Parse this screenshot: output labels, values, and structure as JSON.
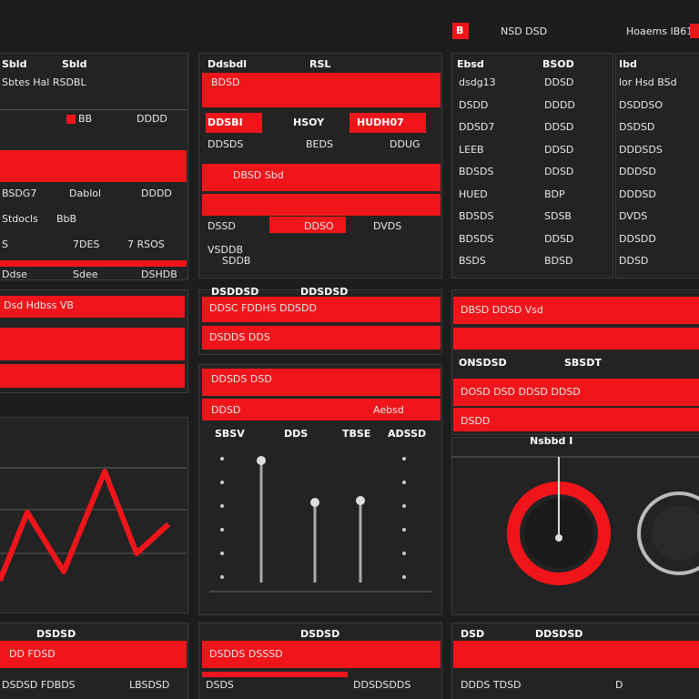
{
  "header": {
    "badge": "B",
    "label": "NSD DSD",
    "right": "Hoaems IB61"
  },
  "panel_a": {
    "cols": [
      "Sbld",
      "Sbld"
    ],
    "subtitle": "Sbtes Hal RSDBL",
    "rows": [
      [
        "BB",
        "DDDD"
      ],
      [
        "BSDG7",
        "Dablol",
        "DDDD"
      ],
      [
        "Stdocls",
        "BbB"
      ],
      [
        "S",
        "7DES",
        "7 RSOS"
      ],
      [
        "Ddse",
        "Sdee",
        "DSHDB"
      ]
    ]
  },
  "panel_b": {
    "cols": [
      "Ddsbdl",
      "RSL"
    ],
    "banner": "BDSD",
    "rows": [
      [
        "DDSBI",
        "HSOY",
        "HUDH07"
      ],
      [
        "DDSDS",
        "BEDS",
        "DDUG"
      ],
      [
        "DBSD Sbd"
      ],
      [
        "DSSD",
        "DDSO",
        "DVDS"
      ],
      [
        "VSDDB",
        "SDDB"
      ]
    ]
  },
  "panel_c": {
    "cols": [
      "Ebsd",
      "BSOD"
    ],
    "rows": [
      [
        "dsdg13",
        "DDSD"
      ],
      [
        "DSDD",
        "DDDD"
      ],
      [
        "DDSD7",
        "DDSD"
      ],
      [
        "LEEB",
        "DDSD"
      ],
      [
        "BDSDS",
        "DDSD"
      ],
      [
        "HUED",
        "BDP"
      ],
      [
        "BDSDS",
        "SDSB"
      ],
      [
        "BDSDS",
        "DDSD"
      ],
      [
        "BSDS",
        "BDSD"
      ]
    ]
  },
  "panel_d": {
    "cols": [
      "Ibd"
    ],
    "rows": [
      "lor Hsd BSd",
      "DSDDSO",
      "DSDSD",
      "DDDSDS",
      "DDDSD",
      "DDDSD",
      "DVDS",
      "DDSDD",
      "DDSD"
    ]
  },
  "panel_e": {
    "rows": [
      "Dsd Hdbss VB"
    ]
  },
  "panel_f": {
    "title": [
      "DSDDSD",
      "DDSDSD"
    ],
    "rows": [
      "DDSC FDDHS DDSDD",
      "DSDDS DDS"
    ]
  },
  "panel_g": {
    "rows": [
      "DBSD DDSD Vsd",
      "ONSDSD",
      "SBSDT",
      "DOSD DSD DDSD DDSD",
      "DSDD"
    ]
  },
  "panel_i": {
    "banner": "DDSDS DSD",
    "sub": [
      "DDSD",
      "Aebsd"
    ],
    "cols": [
      "SBSV",
      "DDS",
      "TBSE",
      "ADSSD"
    ]
  },
  "panel_j": {
    "title": "Nsbbd I"
  },
  "panel_k": {
    "title": "DSDSD",
    "bar": "DD FDSD",
    "row": [
      "DSDSD FDBDS",
      "LBSDSD"
    ]
  },
  "panel_l": {
    "title": "DSDSD",
    "bar": "DSDDS DSSSD",
    "row": [
      "DSDS",
      "DDSDSDDS"
    ]
  },
  "panel_m": {
    "title": [
      "DSD",
      "DDSDSD"
    ],
    "row": [
      "DDDS TDSD",
      "D"
    ]
  }
}
